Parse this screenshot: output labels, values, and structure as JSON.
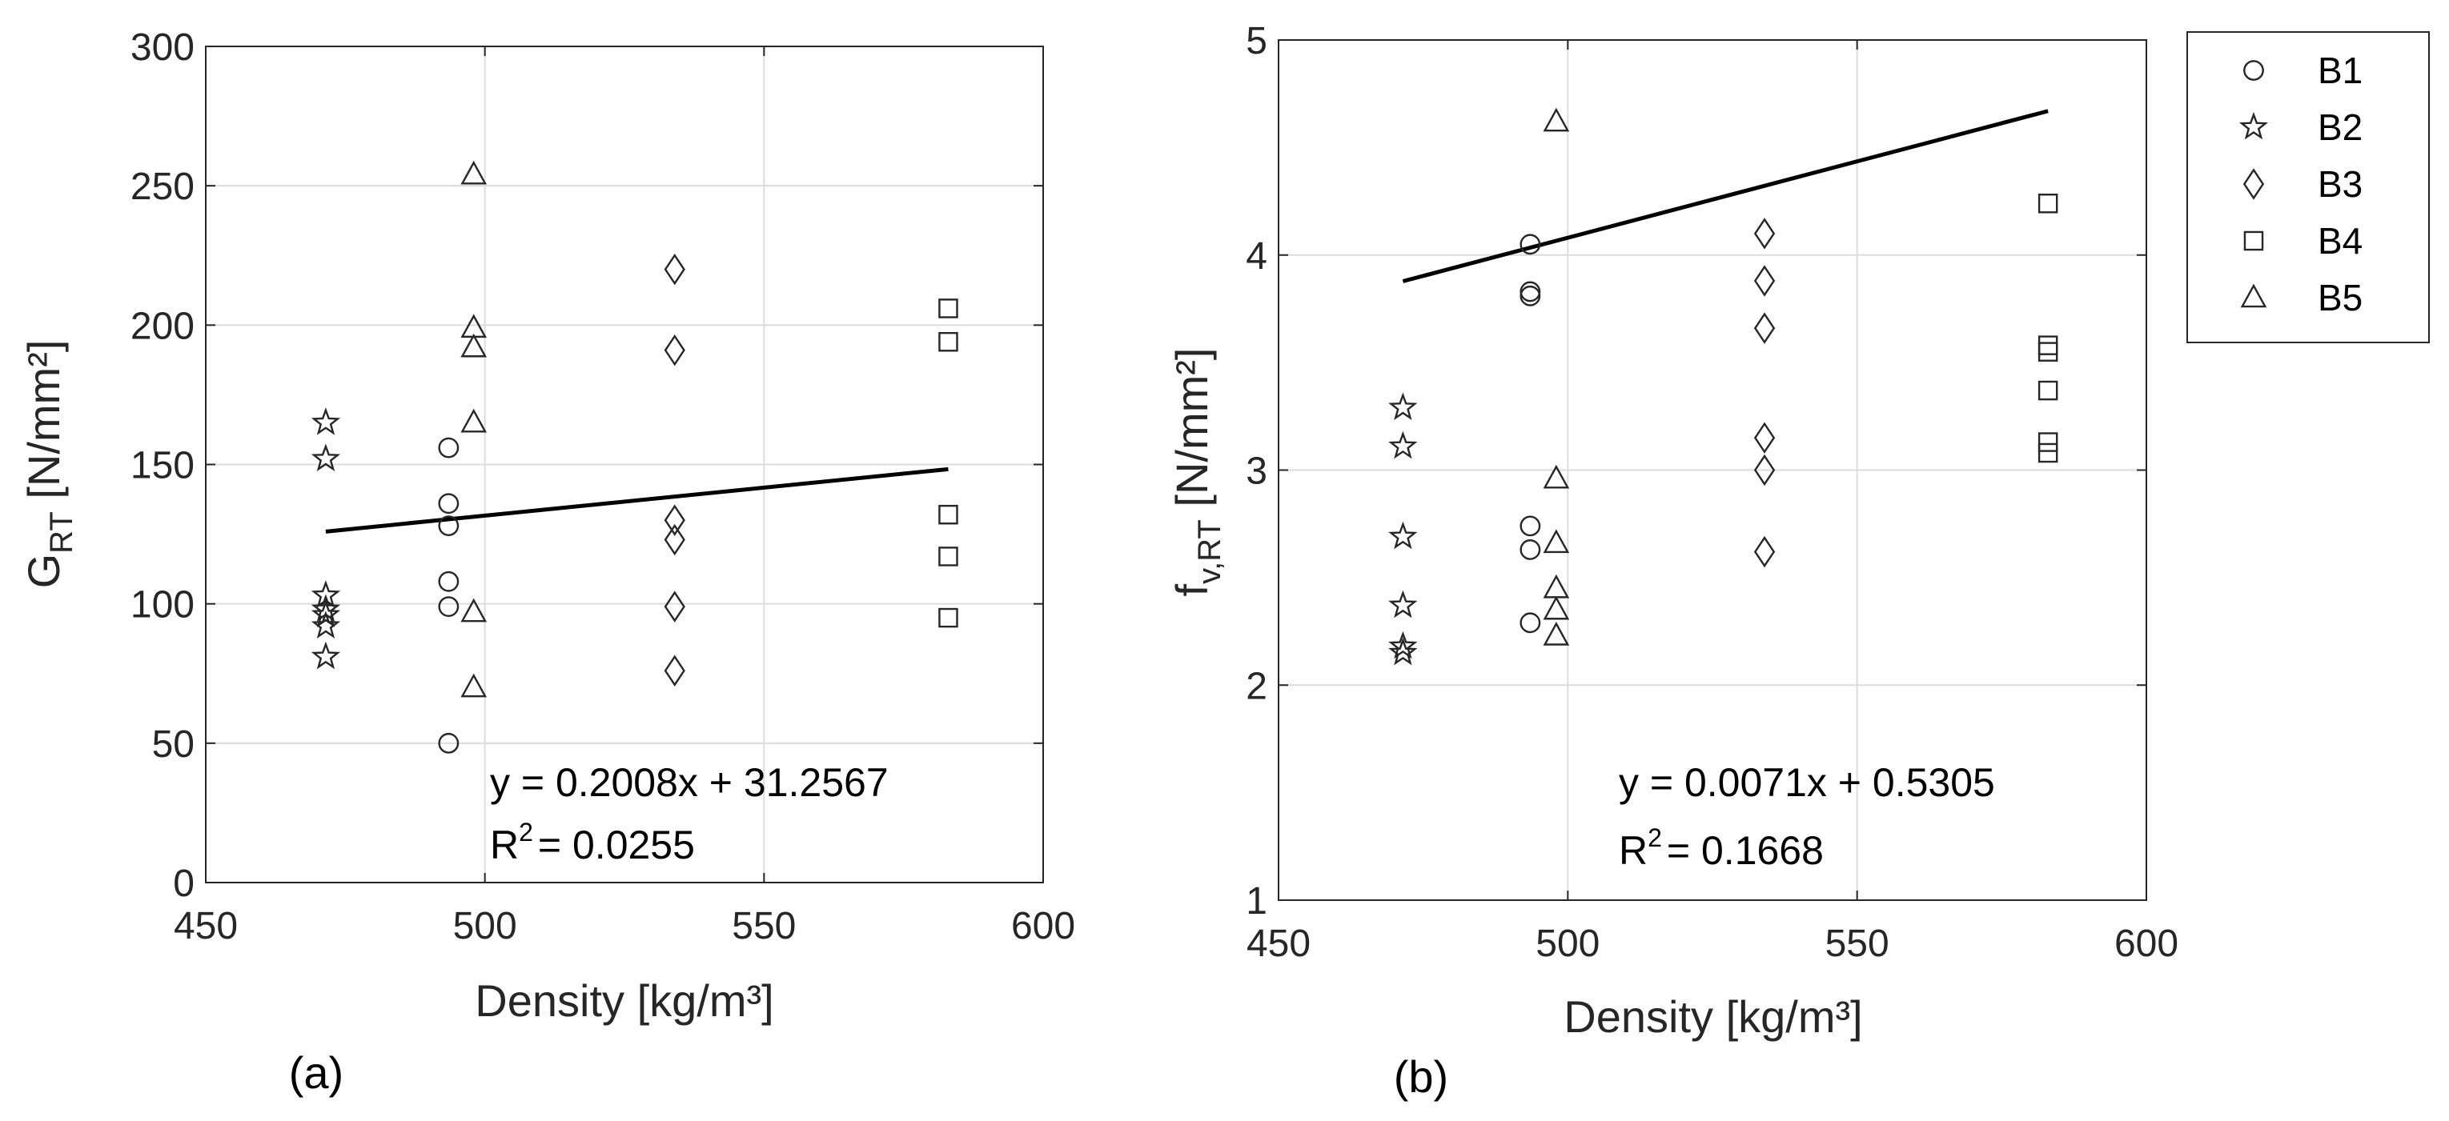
{
  "colors": {
    "marker": "#262626",
    "fit_line": "#000000",
    "grid": "#dcdcdc",
    "axis": "#262626"
  },
  "legend": {
    "placement": "outside-right of panel (b)",
    "entries": [
      {
        "label": "B1",
        "marker": "circle"
      },
      {
        "label": "B2",
        "marker": "star"
      },
      {
        "label": "B3",
        "marker": "diamond"
      },
      {
        "label": "B4",
        "marker": "square"
      },
      {
        "label": "B5",
        "marker": "triangle"
      }
    ]
  },
  "chart_data": [
    {
      "type": "scatter",
      "panel_label": "(a)",
      "title": "",
      "xlabel": "Density [kg/m³]",
      "ylabel_main": "G",
      "ylabel_sub": "RT",
      "ylabel_unit": " [N/mm²]",
      "xlim": [
        450,
        600
      ],
      "ylim": [
        0,
        300
      ],
      "xticks": [
        450,
        500,
        550,
        600
      ],
      "yticks": [
        0,
        50,
        100,
        150,
        200,
        250,
        300
      ],
      "grid": true,
      "fit": {
        "slope": 0.2008,
        "intercept": 31.2567,
        "x_range": [
          471.5,
          583
        ]
      },
      "equation_text": "y = 0.2008x + 31.2567",
      "r2_text": "= 0.0255",
      "series": [
        {
          "name": "B1",
          "marker": "circle",
          "x": [
            493.5,
            493.5,
            493.5,
            493.5,
            493.5,
            493.5
          ],
          "y": [
            156,
            136,
            128,
            108,
            99,
            50
          ]
        },
        {
          "name": "B2",
          "marker": "star",
          "x": [
            471.5,
            471.5,
            471.5,
            471.5,
            471.5,
            471.5,
            471.5
          ],
          "y": [
            165,
            152,
            103,
            98,
            96,
            92,
            81
          ]
        },
        {
          "name": "B3",
          "marker": "diamond",
          "x": [
            534,
            534,
            534,
            534,
            534,
            534
          ],
          "y": [
            220,
            191,
            130,
            123,
            99,
            76
          ]
        },
        {
          "name": "B4",
          "marker": "square",
          "x": [
            583,
            583,
            583,
            583,
            583
          ],
          "y": [
            206,
            194,
            132,
            117,
            95
          ]
        },
        {
          "name": "B5",
          "marker": "triangle",
          "x": [
            498,
            498,
            498,
            498,
            498,
            498
          ],
          "y": [
            254,
            199,
            192,
            165,
            97,
            70
          ]
        }
      ]
    },
    {
      "type": "scatter",
      "panel_label": "(b)",
      "title": "",
      "xlabel": "Density [kg/m³]",
      "ylabel_main": "f",
      "ylabel_sub": "v,RT",
      "ylabel_unit": " [N/mm²]",
      "xlim": [
        450,
        600
      ],
      "ylim": [
        1,
        5
      ],
      "xticks": [
        450,
        500,
        550,
        600
      ],
      "yticks": [
        1,
        2,
        3,
        4,
        5
      ],
      "grid": true,
      "fit": {
        "slope": 0.0071,
        "intercept": 0.5305,
        "x_range": [
          471.5,
          583
        ]
      },
      "equation_text": "y = 0.0071x + 0.5305",
      "r2_text": "= 0.1668",
      "series": [
        {
          "name": "B1",
          "marker": "circle",
          "x": [
            493.5,
            493.5,
            493.5,
            493.5,
            493.5,
            493.5
          ],
          "y": [
            4.05,
            3.83,
            3.81,
            2.74,
            2.63,
            2.29
          ]
        },
        {
          "name": "B2",
          "marker": "star",
          "x": [
            471.5,
            471.5,
            471.5,
            471.5,
            471.5,
            471.5
          ],
          "y": [
            3.29,
            3.11,
            2.69,
            2.37,
            2.18,
            2.15
          ]
        },
        {
          "name": "B3",
          "marker": "diamond",
          "x": [
            534,
            534,
            534,
            534,
            534,
            534
          ],
          "y": [
            4.1,
            3.88,
            3.66,
            3.15,
            3.0,
            2.62
          ]
        },
        {
          "name": "B4",
          "marker": "square",
          "x": [
            583,
            583,
            583,
            583,
            583,
            583
          ],
          "y": [
            4.24,
            3.58,
            3.55,
            3.37,
            3.13,
            3.08
          ]
        },
        {
          "name": "B5",
          "marker": "triangle",
          "x": [
            498,
            498,
            498,
            498,
            498,
            498
          ],
          "y": [
            4.62,
            2.96,
            2.66,
            2.45,
            2.35,
            2.23
          ]
        }
      ]
    }
  ]
}
